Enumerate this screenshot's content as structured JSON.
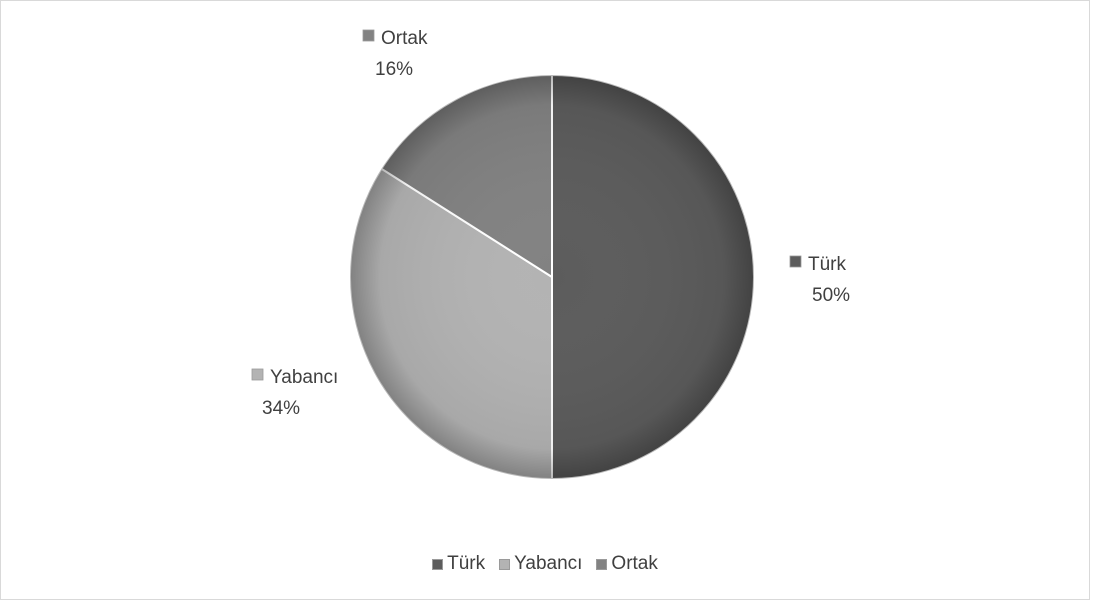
{
  "chart_data": {
    "type": "pie",
    "categories": [
      "Türk",
      "Yabancı",
      "Ortak"
    ],
    "values": [
      50,
      34,
      16
    ],
    "value_labels": [
      "50%",
      "34%",
      "16%"
    ],
    "colors": [
      "#5c5c5c",
      "#b3b3b3",
      "#828282"
    ],
    "legend": {
      "position": "bottom",
      "entries": [
        "Türk",
        "Yabancı",
        "Ortak"
      ]
    }
  }
}
